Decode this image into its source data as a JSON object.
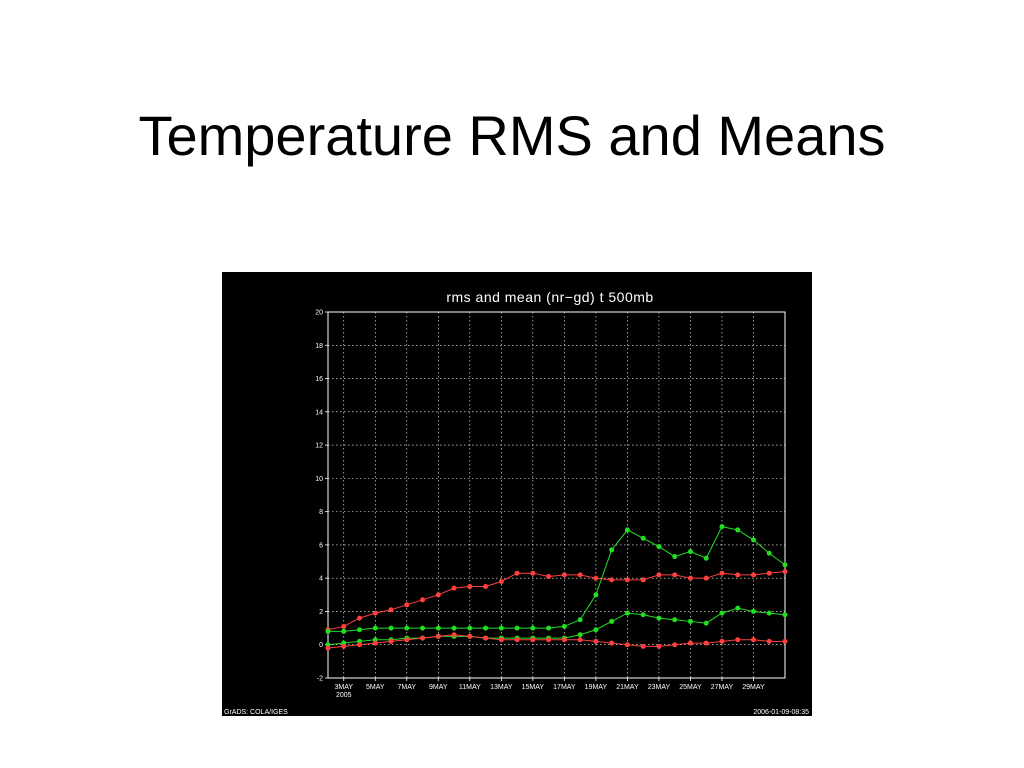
{
  "slide_title": "Temperature RMS and Means",
  "chart_data": {
    "type": "line",
    "title": "rms and mean (nr−gd) t 500mb",
    "footer_left": "GrADS: COLA/IGES",
    "footer_right": "2006-01-09-08:35",
    "x_year_label": "2005",
    "x": [
      "2005-05-02",
      "2005-05-03",
      "2005-05-04",
      "2005-05-05",
      "2005-05-06",
      "2005-05-07",
      "2005-05-08",
      "2005-05-09",
      "2005-05-10",
      "2005-05-11",
      "2005-05-12",
      "2005-05-13",
      "2005-05-14",
      "2005-05-15",
      "2005-05-16",
      "2005-05-17",
      "2005-05-18",
      "2005-05-19",
      "2005-05-20",
      "2005-05-21",
      "2005-05-22",
      "2005-05-23",
      "2005-05-24",
      "2005-05-25",
      "2005-05-26",
      "2005-05-27",
      "2005-05-28",
      "2005-05-29",
      "2005-05-30",
      "2005-05-31"
    ],
    "series": [
      {
        "color": "#ff4040",
        "values": [
          0.9,
          1.1,
          1.6,
          1.9,
          2.1,
          2.4,
          2.7,
          3.0,
          3.4,
          3.5,
          3.5,
          3.8,
          4.3,
          4.3,
          4.1,
          4.2,
          4.2,
          4.0,
          3.9,
          3.9,
          3.9,
          4.2,
          4.2,
          4.0,
          4.0,
          4.3,
          4.2,
          4.2,
          4.3,
          4.4
        ]
      },
      {
        "color": "#22dd22",
        "values": [
          0.8,
          0.8,
          0.9,
          1.0,
          1.0,
          1.0,
          1.0,
          1.0,
          1.0,
          1.0,
          1.0,
          1.0,
          1.0,
          1.0,
          1.0,
          1.1,
          1.5,
          3.0,
          5.7,
          6.9,
          6.4,
          5.9,
          5.3,
          5.6,
          5.2,
          7.1,
          6.9,
          6.3,
          5.5,
          4.8
        ]
      },
      {
        "color": "#22dd22",
        "values": [
          0.0,
          0.1,
          0.2,
          0.3,
          0.3,
          0.4,
          0.4,
          0.5,
          0.5,
          0.5,
          0.4,
          0.4,
          0.4,
          0.4,
          0.4,
          0.4,
          0.6,
          0.9,
          1.4,
          1.9,
          1.8,
          1.6,
          1.5,
          1.4,
          1.3,
          1.9,
          2.2,
          2.0,
          1.9,
          1.8
        ]
      },
      {
        "color": "#ff4040",
        "values": [
          -0.2,
          -0.1,
          0.0,
          0.1,
          0.2,
          0.3,
          0.4,
          0.5,
          0.6,
          0.5,
          0.4,
          0.3,
          0.3,
          0.3,
          0.3,
          0.3,
          0.3,
          0.2,
          0.1,
          0.0,
          -0.1,
          -0.1,
          0.0,
          0.1,
          0.1,
          0.2,
          0.3,
          0.3,
          0.2,
          0.2
        ]
      }
    ],
    "xlim": [
      "2005-05-02",
      "2005-05-31"
    ],
    "xticks": [
      {
        "value": "2005-05-03",
        "label": "3MAY"
      },
      {
        "value": "2005-05-05",
        "label": "5MAY"
      },
      {
        "value": "2005-05-07",
        "label": "7MAY"
      },
      {
        "value": "2005-05-09",
        "label": "9MAY"
      },
      {
        "value": "2005-05-11",
        "label": "11MAY"
      },
      {
        "value": "2005-05-13",
        "label": "13MAY"
      },
      {
        "value": "2005-05-15",
        "label": "15MAY"
      },
      {
        "value": "2005-05-17",
        "label": "17MAY"
      },
      {
        "value": "2005-05-19",
        "label": "19MAY"
      },
      {
        "value": "2005-05-21",
        "label": "21MAY"
      },
      {
        "value": "2005-05-23",
        "label": "23MAY"
      },
      {
        "value": "2005-05-25",
        "label": "25MAY"
      },
      {
        "value": "2005-05-27",
        "label": "27MAY"
      },
      {
        "value": "2005-05-29",
        "label": "29MAY"
      }
    ],
    "ylim": [
      -2,
      20
    ],
    "yticks": [
      -2,
      0,
      2,
      4,
      6,
      8,
      10,
      12,
      14,
      16,
      18,
      20
    ],
    "grid": true
  }
}
